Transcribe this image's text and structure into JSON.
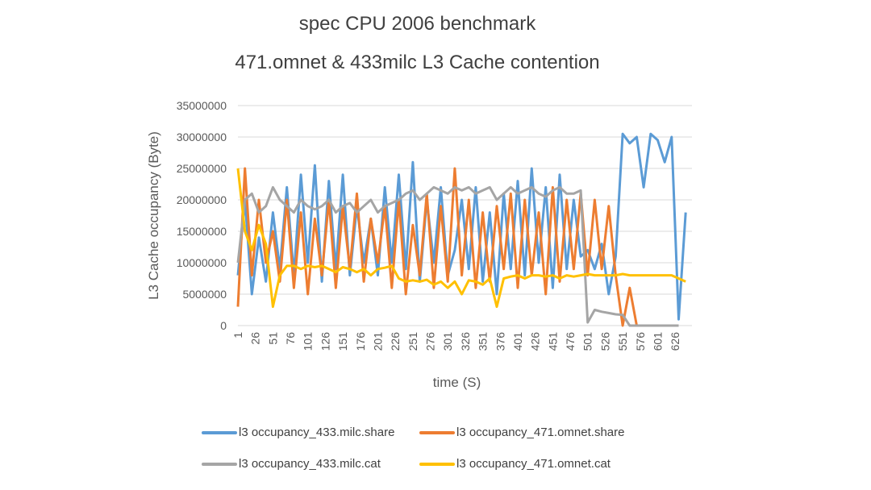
{
  "chart_data": {
    "type": "line",
    "title": "spec CPU 2006 benchmark",
    "subtitle": "471.omnet & 433milc L3 Cache contention",
    "xlabel": "time (S)",
    "ylabel": "L3 Cache occupancy (Byte)",
    "ylim": [
      0,
      35000000
    ],
    "xlim": [
      1,
      650
    ],
    "y_ticks": [
      "0",
      "5000000",
      "10000000",
      "15000000",
      "20000000",
      "25000000",
      "30000000",
      "35000000"
    ],
    "x_ticks": [
      "1",
      "26",
      "51",
      "76",
      "101",
      "126",
      "151",
      "176",
      "201",
      "226",
      "251",
      "276",
      "301",
      "326",
      "351",
      "376",
      "401",
      "426",
      "451",
      "476",
      "501",
      "526",
      "551",
      "576",
      "601",
      "626"
    ],
    "grid": true,
    "legend_position": "bottom",
    "x_start": 1,
    "x_step": 10,
    "value_scale": 1000000,
    "series": [
      {
        "name": "l3 occupancy_433.milc.share",
        "color": "#5B9BD5",
        "values": [
          8.0,
          20.0,
          5.0,
          14.0,
          7.0,
          18.0,
          9.0,
          22.0,
          8.0,
          24.0,
          10.0,
          25.5,
          7.0,
          23.0,
          9.0,
          24.0,
          8.0,
          19.0,
          10.0,
          17.0,
          8.0,
          22.0,
          10.0,
          24.0,
          9.0,
          26.0,
          7.0,
          20.0,
          10.0,
          22.0,
          8.0,
          12.0,
          20.0,
          9.0,
          22.0,
          7.0,
          18.0,
          5.0,
          21.0,
          9.0,
          23.0,
          8.0,
          25.0,
          10.0,
          22.0,
          6.0,
          24.0,
          9.0,
          20.0,
          11.0,
          12.0,
          9.0,
          13.0,
          5.0,
          11.0,
          30.5,
          29.0,
          30.0,
          22.0,
          30.5,
          29.5,
          26.0,
          30.0,
          1.0,
          18.0
        ]
      },
      {
        "name": "l3 occupancy_471.omnet.share",
        "color": "#ED7D31",
        "values": [
          3.0,
          25.0,
          8.0,
          20.0,
          10.0,
          15.0,
          7.0,
          20.0,
          6.0,
          18.0,
          5.0,
          17.0,
          8.0,
          20.0,
          6.0,
          19.0,
          9.0,
          21.0,
          7.0,
          17.0,
          10.0,
          19.0,
          6.0,
          20.0,
          5.0,
          16.0,
          8.0,
          21.0,
          6.0,
          19.0,
          7.0,
          25.0,
          8.0,
          20.0,
          6.0,
          18.0,
          7.0,
          19.0,
          9.0,
          21.0,
          6.0,
          20.0,
          8.0,
          18.0,
          5.0,
          22.0,
          7.0,
          20.0,
          9.0,
          21.0,
          8.0,
          20.0,
          9.0,
          19.0,
          8.0,
          0,
          6.0,
          0
        ]
      },
      {
        "name": "l3 occupancy_433.milc.cat",
        "color": "#A5A5A5",
        "values": [
          10.0,
          20.0,
          21.0,
          18.0,
          19.0,
          22.0,
          20.0,
          19.0,
          18.0,
          20.0,
          19.0,
          18.5,
          19.0,
          20.0,
          18.0,
          19.0,
          19.5,
          18.0,
          19.0,
          20.0,
          18.0,
          19.0,
          19.5,
          20.0,
          21.0,
          21.5,
          20.0,
          21.0,
          22.0,
          21.5,
          21.0,
          22.0,
          21.5,
          22.0,
          21.0,
          21.5,
          22.0,
          20.0,
          21.0,
          22.0,
          21.0,
          21.5,
          22.0,
          21.0,
          20.5,
          21.5,
          22.0,
          21.0,
          21.0,
          21.5,
          0.5,
          2.5,
          2.2,
          2.0,
          1.8,
          1.7,
          0,
          0,
          0,
          0,
          0,
          0,
          0,
          0
        ]
      },
      {
        "name": "l3 occupancy_471.omnet.cat",
        "color": "#FFC000",
        "values": [
          25.0,
          15.0,
          12.0,
          16.0,
          13.0,
          3.0,
          8.0,
          9.5,
          9.5,
          9.0,
          9.5,
          9.3,
          9.5,
          9.0,
          8.5,
          9.3,
          9.0,
          8.5,
          9.0,
          8.0,
          9.0,
          9.2,
          9.5,
          7.5,
          7.0,
          7.2,
          7.0,
          7.3,
          6.5,
          7.0,
          6.0,
          7.0,
          5.0,
          7.2,
          7.0,
          6.5,
          7.5,
          3.0,
          7.5,
          7.8,
          8.0,
          7.5,
          8.0,
          8.0,
          7.8,
          8.0,
          7.5,
          8.0,
          7.8,
          8.0,
          8.2,
          8.0,
          8.0,
          8.0,
          8.0,
          8.2,
          8.0,
          8.0,
          8.0,
          8.0,
          8.0,
          8.0,
          8.0,
          7.5,
          7.0
        ]
      }
    ]
  }
}
